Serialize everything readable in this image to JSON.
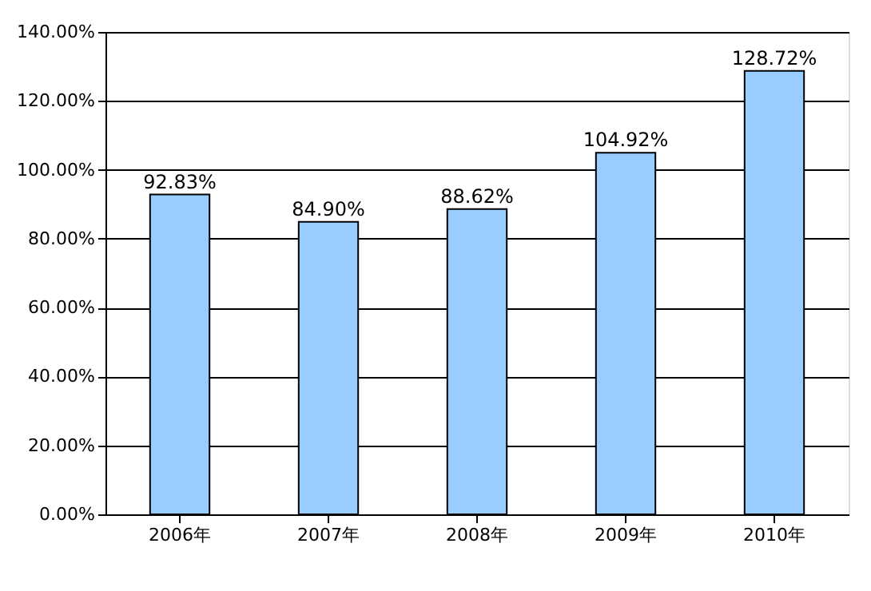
{
  "chart_data": {
    "type": "bar",
    "categories": [
      "2006年",
      "2007年",
      "2008年",
      "2009年",
      "2010年"
    ],
    "values": [
      92.83,
      84.9,
      88.62,
      104.92,
      128.72
    ],
    "value_labels": [
      "92.83%",
      "84.90%",
      "88.62%",
      "104.92%",
      "128.72%"
    ],
    "color": "#99ccff",
    "ylim": [
      0,
      140
    ],
    "yticks": [
      {
        "value": 0,
        "label": "0.00%"
      },
      {
        "value": 20,
        "label": "20.00%"
      },
      {
        "value": 40,
        "label": "40.00%"
      },
      {
        "value": 60,
        "label": "60.00%"
      },
      {
        "value": 80,
        "label": "80.00%"
      },
      {
        "value": 100,
        "label": "100.00%"
      },
      {
        "value": 120,
        "label": "120.00%"
      },
      {
        "value": 140,
        "label": "140.00%"
      }
    ],
    "grid": "y"
  }
}
